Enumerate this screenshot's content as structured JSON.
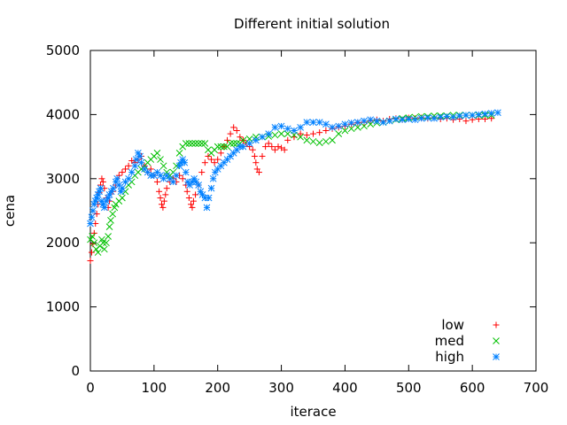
{
  "chart_data": {
    "type": "scatter",
    "title": "Different initial solution",
    "xlabel": "iterace",
    "ylabel": "cena",
    "xlim": [
      0,
      700
    ],
    "ylim": [
      0,
      5000
    ],
    "xticks": [
      0,
      100,
      200,
      300,
      400,
      500,
      600,
      700
    ],
    "yticks": [
      0,
      1000,
      2000,
      3000,
      4000,
      5000
    ],
    "grid": false,
    "legend_position": "bottom-right",
    "series": [
      {
        "name": "low",
        "marker": "plus",
        "color": "#ff0000",
        "points": [
          [
            0,
            1720
          ],
          [
            2,
            1850
          ],
          [
            4,
            1980
          ],
          [
            6,
            2150
          ],
          [
            8,
            2300
          ],
          [
            10,
            2450
          ],
          [
            12,
            2600
          ],
          [
            14,
            2780
          ],
          [
            16,
            2900
          ],
          [
            18,
            3000
          ],
          [
            20,
            2950
          ],
          [
            22,
            2850
          ],
          [
            25,
            2700
          ],
          [
            28,
            2550
          ],
          [
            30,
            2650
          ],
          [
            35,
            2800
          ],
          [
            40,
            2900
          ],
          [
            45,
            3050
          ],
          [
            50,
            3100
          ],
          [
            55,
            3150
          ],
          [
            60,
            3200
          ],
          [
            65,
            3280
          ],
          [
            70,
            3250
          ],
          [
            75,
            3300
          ],
          [
            80,
            3350
          ],
          [
            85,
            3200
          ],
          [
            90,
            3100
          ],
          [
            95,
            3150
          ],
          [
            100,
            3050
          ],
          [
            105,
            2950
          ],
          [
            108,
            2800
          ],
          [
            110,
            2700
          ],
          [
            112,
            2600
          ],
          [
            114,
            2550
          ],
          [
            116,
            2650
          ],
          [
            118,
            2750
          ],
          [
            120,
            2850
          ],
          [
            125,
            2950
          ],
          [
            130,
            3000
          ],
          [
            135,
            2950
          ],
          [
            140,
            3050
          ],
          [
            145,
            3000
          ],
          [
            150,
            2900
          ],
          [
            152,
            2800
          ],
          [
            155,
            2700
          ],
          [
            158,
            2600
          ],
          [
            160,
            2550
          ],
          [
            162,
            2650
          ],
          [
            165,
            2750
          ],
          [
            170,
            2900
          ],
          [
            175,
            3100
          ],
          [
            180,
            3250
          ],
          [
            185,
            3350
          ],
          [
            190,
            3300
          ],
          [
            195,
            3250
          ],
          [
            200,
            3300
          ],
          [
            205,
            3400
          ],
          [
            210,
            3500
          ],
          [
            215,
            3600
          ],
          [
            220,
            3700
          ],
          [
            225,
            3800
          ],
          [
            230,
            3750
          ],
          [
            235,
            3650
          ],
          [
            240,
            3600
          ],
          [
            245,
            3550
          ],
          [
            250,
            3500
          ],
          [
            255,
            3450
          ],
          [
            258,
            3350
          ],
          [
            260,
            3250
          ],
          [
            262,
            3150
          ],
          [
            265,
            3100
          ],
          [
            270,
            3350
          ],
          [
            275,
            3500
          ],
          [
            280,
            3550
          ],
          [
            285,
            3500
          ],
          [
            290,
            3450
          ],
          [
            295,
            3500
          ],
          [
            300,
            3480
          ],
          [
            305,
            3450
          ],
          [
            310,
            3600
          ],
          [
            320,
            3650
          ],
          [
            330,
            3700
          ],
          [
            340,
            3680
          ],
          [
            350,
            3700
          ],
          [
            360,
            3720
          ],
          [
            370,
            3750
          ],
          [
            380,
            3780
          ],
          [
            390,
            3800
          ],
          [
            400,
            3820
          ],
          [
            410,
            3850
          ],
          [
            420,
            3870
          ],
          [
            430,
            3880
          ],
          [
            440,
            3900
          ],
          [
            450,
            3920
          ],
          [
            460,
            3900
          ],
          [
            470,
            3930
          ],
          [
            480,
            3940
          ],
          [
            490,
            3920
          ],
          [
            500,
            3950
          ],
          [
            510,
            3940
          ],
          [
            520,
            3950
          ],
          [
            530,
            3940
          ],
          [
            540,
            3950
          ],
          [
            550,
            3930
          ],
          [
            560,
            3940
          ],
          [
            570,
            3920
          ],
          [
            580,
            3930
          ],
          [
            590,
            3900
          ],
          [
            600,
            3920
          ],
          [
            610,
            3930
          ],
          [
            620,
            3930
          ],
          [
            630,
            3940
          ]
        ]
      },
      {
        "name": "med",
        "marker": "cross",
        "color": "#00c000",
        "points": [
          [
            0,
            2050
          ],
          [
            3,
            2100
          ],
          [
            6,
            2000
          ],
          [
            9,
            1900
          ],
          [
            12,
            1850
          ],
          [
            15,
            1950
          ],
          [
            18,
            2050
          ],
          [
            20,
            2000
          ],
          [
            22,
            1900
          ],
          [
            25,
            2000
          ],
          [
            28,
            2100
          ],
          [
            30,
            2250
          ],
          [
            32,
            2350
          ],
          [
            35,
            2450
          ],
          [
            38,
            2550
          ],
          [
            40,
            2600
          ],
          [
            45,
            2650
          ],
          [
            50,
            2700
          ],
          [
            55,
            2800
          ],
          [
            60,
            2900
          ],
          [
            65,
            2950
          ],
          [
            70,
            3050
          ],
          [
            75,
            3100
          ],
          [
            80,
            3150
          ],
          [
            85,
            3200
          ],
          [
            90,
            3250
          ],
          [
            95,
            3300
          ],
          [
            100,
            3350
          ],
          [
            105,
            3400
          ],
          [
            110,
            3300
          ],
          [
            115,
            3200
          ],
          [
            120,
            3100
          ],
          [
            125,
            3050
          ],
          [
            130,
            3100
          ],
          [
            135,
            3200
          ],
          [
            140,
            3400
          ],
          [
            145,
            3500
          ],
          [
            150,
            3550
          ],
          [
            155,
            3550
          ],
          [
            160,
            3550
          ],
          [
            165,
            3550
          ],
          [
            170,
            3550
          ],
          [
            175,
            3550
          ],
          [
            180,
            3550
          ],
          [
            185,
            3450
          ],
          [
            190,
            3400
          ],
          [
            195,
            3450
          ],
          [
            200,
            3500
          ],
          [
            205,
            3500
          ],
          [
            210,
            3500
          ],
          [
            215,
            3500
          ],
          [
            220,
            3550
          ],
          [
            225,
            3550
          ],
          [
            230,
            3550
          ],
          [
            235,
            3550
          ],
          [
            240,
            3600
          ],
          [
            250,
            3620
          ],
          [
            260,
            3650
          ],
          [
            270,
            3650
          ],
          [
            280,
            3660
          ],
          [
            290,
            3680
          ],
          [
            300,
            3700
          ],
          [
            310,
            3700
          ],
          [
            320,
            3680
          ],
          [
            330,
            3650
          ],
          [
            340,
            3600
          ],
          [
            350,
            3580
          ],
          [
            360,
            3560
          ],
          [
            370,
            3580
          ],
          [
            380,
            3600
          ],
          [
            390,
            3700
          ],
          [
            400,
            3750
          ],
          [
            410,
            3780
          ],
          [
            420,
            3800
          ],
          [
            430,
            3820
          ],
          [
            440,
            3850
          ],
          [
            450,
            3870
          ],
          [
            460,
            3880
          ],
          [
            470,
            3900
          ],
          [
            480,
            3920
          ],
          [
            490,
            3940
          ],
          [
            500,
            3950
          ],
          [
            510,
            3960
          ],
          [
            520,
            3970
          ],
          [
            530,
            3970
          ],
          [
            540,
            3980
          ],
          [
            550,
            3980
          ],
          [
            560,
            3980
          ],
          [
            570,
            3990
          ],
          [
            580,
            3990
          ],
          [
            590,
            3990
          ],
          [
            600,
            3990
          ],
          [
            610,
            3990
          ],
          [
            620,
            3990
          ],
          [
            630,
            3990
          ]
        ]
      },
      {
        "name": "high",
        "marker": "star",
        "color": "#0080ff",
        "points": [
          [
            0,
            2300
          ],
          [
            2,
            2400
          ],
          [
            4,
            2500
          ],
          [
            6,
            2600
          ],
          [
            8,
            2650
          ],
          [
            10,
            2700
          ],
          [
            12,
            2750
          ],
          [
            14,
            2800
          ],
          [
            16,
            2850
          ],
          [
            18,
            2650
          ],
          [
            20,
            2600
          ],
          [
            22,
            2550
          ],
          [
            25,
            2650
          ],
          [
            28,
            2700
          ],
          [
            30,
            2750
          ],
          [
            33,
            2800
          ],
          [
            36,
            2850
          ],
          [
            40,
            2950
          ],
          [
            42,
            3000
          ],
          [
            45,
            2900
          ],
          [
            48,
            2800
          ],
          [
            50,
            2850
          ],
          [
            55,
            2950
          ],
          [
            60,
            3000
          ],
          [
            65,
            3100
          ],
          [
            70,
            3200
          ],
          [
            72,
            3300
          ],
          [
            75,
            3400
          ],
          [
            78,
            3350
          ],
          [
            80,
            3250
          ],
          [
            85,
            3150
          ],
          [
            90,
            3100
          ],
          [
            95,
            3050
          ],
          [
            100,
            3050
          ],
          [
            105,
            3100
          ],
          [
            110,
            3050
          ],
          [
            115,
            3000
          ],
          [
            120,
            3050
          ],
          [
            125,
            3000
          ],
          [
            130,
            2950
          ],
          [
            135,
            3050
          ],
          [
            140,
            3200
          ],
          [
            142,
            3250
          ],
          [
            145,
            3300
          ],
          [
            148,
            3250
          ],
          [
            150,
            3100
          ],
          [
            153,
            2950
          ],
          [
            156,
            2900
          ],
          [
            160,
            2950
          ],
          [
            163,
            3000
          ],
          [
            166,
            2950
          ],
          [
            170,
            2900
          ],
          [
            173,
            2800
          ],
          [
            176,
            2750
          ],
          [
            180,
            2700
          ],
          [
            183,
            2550
          ],
          [
            186,
            2700
          ],
          [
            190,
            2850
          ],
          [
            193,
            3000
          ],
          [
            196,
            3100
          ],
          [
            200,
            3150
          ],
          [
            205,
            3200
          ],
          [
            210,
            3250
          ],
          [
            215,
            3300
          ],
          [
            220,
            3350
          ],
          [
            225,
            3400
          ],
          [
            230,
            3450
          ],
          [
            235,
            3500
          ],
          [
            240,
            3500
          ],
          [
            250,
            3550
          ],
          [
            260,
            3600
          ],
          [
            270,
            3650
          ],
          [
            280,
            3700
          ],
          [
            290,
            3800
          ],
          [
            300,
            3820
          ],
          [
            310,
            3780
          ],
          [
            320,
            3750
          ],
          [
            330,
            3800
          ],
          [
            340,
            3880
          ],
          [
            350,
            3880
          ],
          [
            360,
            3880
          ],
          [
            370,
            3850
          ],
          [
            380,
            3800
          ],
          [
            390,
            3820
          ],
          [
            400,
            3850
          ],
          [
            410,
            3870
          ],
          [
            420,
            3880
          ],
          [
            430,
            3900
          ],
          [
            440,
            3920
          ],
          [
            450,
            3900
          ],
          [
            460,
            3880
          ],
          [
            470,
            3900
          ],
          [
            480,
            3930
          ],
          [
            490,
            3920
          ],
          [
            500,
            3930
          ],
          [
            510,
            3920
          ],
          [
            520,
            3940
          ],
          [
            530,
            3950
          ],
          [
            540,
            3940
          ],
          [
            550,
            3960
          ],
          [
            560,
            3970
          ],
          [
            570,
            3960
          ],
          [
            580,
            3980
          ],
          [
            590,
            3990
          ],
          [
            600,
            3990
          ],
          [
            610,
            4000
          ],
          [
            620,
            4010
          ],
          [
            630,
            4020
          ],
          [
            640,
            4030
          ]
        ]
      }
    ]
  }
}
